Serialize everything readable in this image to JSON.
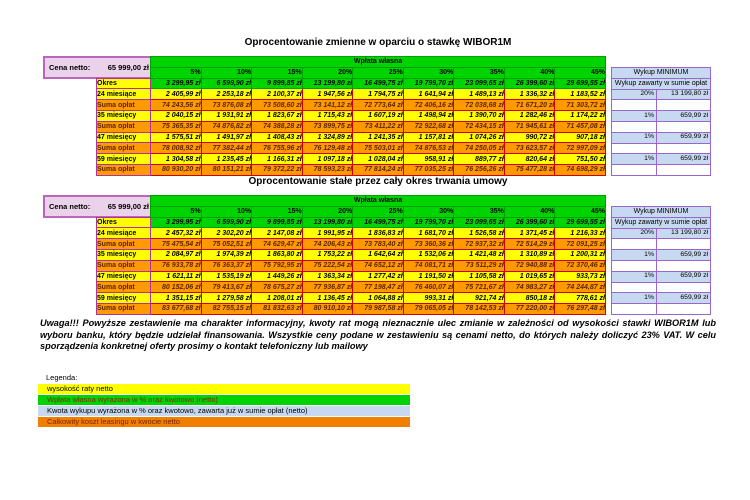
{
  "cena_netto": {
    "label": "Cena netto:",
    "value": "65 999,00 zł"
  },
  "wplata_header": "Wpłata własna",
  "percent_columns": [
    "5%",
    "10%",
    "15%",
    "20%",
    "25%",
    "30%",
    "35%",
    "40%",
    "45%"
  ],
  "wykup": {
    "title": "Wykup MINIMUM",
    "subtitle": "Wykup zawarty w sumie opłat",
    "rows": [
      [
        "20%",
        "13 199,80 zł"
      ],
      [
        "",
        ""
      ],
      [
        "1%",
        "659,99 zł"
      ],
      [
        "",
        ""
      ],
      [
        "1%",
        "659,99 zł"
      ],
      [
        "",
        ""
      ],
      [
        "1%",
        "659,99 zł"
      ],
      [
        "",
        ""
      ]
    ]
  },
  "tables": [
    {
      "title": "Oprocentowanie zmienne w oparciu o stawkę WIBOR1M",
      "rows": [
        {
          "label": "Okres",
          "type": "green",
          "values": [
            "3 299,95 zł",
            "6 599,90 zł",
            "9 899,85 zł",
            "13 199,80 zł",
            "16 499,75 zł",
            "19 799,70 zł",
            "23 099,65 zł",
            "26 399,60 zł",
            "29 699,55 zł"
          ]
        },
        {
          "label": "24 miesiące",
          "type": "rate",
          "values": [
            "2 405,99 zł",
            "2 253,18 zł",
            "2 100,37 zł",
            "1 947,56 zł",
            "1 794,75 zł",
            "1 641,94 zł",
            "1 489,13 zł",
            "1 336,32 zł",
            "1 183,52 zł"
          ]
        },
        {
          "label": "Suma opłat",
          "type": "sum",
          "values": [
            "74 243,56 zł",
            "73 876,08 zł",
            "73 508,60 zł",
            "73 141,12 zł",
            "72 773,64 zł",
            "72 406,16 zł",
            "72 038,68 zł",
            "71 671,20 zł",
            "71 303,72 zł"
          ]
        },
        {
          "label": "35 miesięcy",
          "type": "rate",
          "values": [
            "2 040,15 zł",
            "1 931,91 zł",
            "1 823,67 zł",
            "1 715,43 zł",
            "1 607,19 zł",
            "1 498,94 zł",
            "1 390,70 zł",
            "1 282,46 zł",
            "1 174,22 zł"
          ]
        },
        {
          "label": "Suma opłat",
          "type": "sum",
          "values": [
            "75 365,35 zł",
            "74 876,82 zł",
            "74 388,28 zł",
            "73 899,75 zł",
            "73 411,22 zł",
            "72 922,68 zł",
            "72 434,15 zł",
            "71 945,61 zł",
            "71 457,08 zł"
          ]
        },
        {
          "label": "47 miesięcy",
          "type": "rate",
          "values": [
            "1 575,51 zł",
            "1 491,97 zł",
            "1 408,43 zł",
            "1 324,89 zł",
            "1 241,35 zł",
            "1 157,81 zł",
            "1 074,26 zł",
            "990,72 zł",
            "907,18 zł"
          ]
        },
        {
          "label": "Suma opłat",
          "type": "sum",
          "values": [
            "78 008,92 zł",
            "77 382,44 zł",
            "76 755,96 zł",
            "76 129,48 zł",
            "75 503,01 zł",
            "74 876,53 zł",
            "74 250,05 zł",
            "73 623,57 zł",
            "72 997,09 zł"
          ]
        },
        {
          "label": "59 miesięcy",
          "type": "rate",
          "values": [
            "1 304,58 zł",
            "1 235,45 zł",
            "1 166,31 zł",
            "1 097,18 zł",
            "1 028,04 zł",
            "958,91 zł",
            "889,77 zł",
            "820,64 zł",
            "751,50 zł"
          ]
        },
        {
          "label": "Suma opłat",
          "type": "sum",
          "values": [
            "80 930,20 zł",
            "80 151,21 zł",
            "79 372,22 zł",
            "78 593,23 zł",
            "77 814,24 zł",
            "77 035,25 zł",
            "76 256,26 zł",
            "75 477,28 zł",
            "74 698,29 zł"
          ]
        }
      ]
    },
    {
      "title": "Oprocentowanie stałe przez cały okres trwania umowy",
      "rows": [
        {
          "label": "Okres",
          "type": "green",
          "values": [
            "3 299,95 zł",
            "6 599,90 zł",
            "9 899,85 zł",
            "13 199,80 zł",
            "16 499,75 zł",
            "19 799,70 zł",
            "23 099,65 zł",
            "26 399,60 zł",
            "29 699,55 zł"
          ]
        },
        {
          "label": "24 miesiące",
          "type": "rate",
          "values": [
            "2 457,32 zł",
            "2 302,20 zł",
            "2 147,08 zł",
            "1 991,95 zł",
            "1 836,83 zł",
            "1 681,70 zł",
            "1 526,58 zł",
            "1 371,45 zł",
            "1 216,33 zł"
          ]
        },
        {
          "label": "Suma opłat",
          "type": "sum",
          "values": [
            "75 475,54 zł",
            "75 052,51 zł",
            "74 629,47 zł",
            "74 206,43 zł",
            "73 783,40 zł",
            "73 360,36 zł",
            "72 937,32 zł",
            "72 514,29 zł",
            "72 091,25 zł"
          ]
        },
        {
          "label": "35 miesięcy",
          "type": "rate",
          "values": [
            "2 084,97 zł",
            "1 974,39 zł",
            "1 863,80 zł",
            "1 753,22 zł",
            "1 642,64 zł",
            "1 532,06 zł",
            "1 421,48 zł",
            "1 310,89 zł",
            "1 200,31 zł"
          ]
        },
        {
          "label": "Suma opłat",
          "type": "sum",
          "values": [
            "76 933,78 zł",
            "76 363,37 zł",
            "75 792,95 zł",
            "75 222,54 zł",
            "74 652,12 zł",
            "74 081,71 zł",
            "73 511,29 zł",
            "72 940,88 zł",
            "72 370,46 zł"
          ]
        },
        {
          "label": "47 miesięcy",
          "type": "rate",
          "values": [
            "1 621,11 zł",
            "1 535,19 zł",
            "1 449,26 zł",
            "1 363,34 zł",
            "1 277,42 zł",
            "1 191,50 zł",
            "1 105,58 zł",
            "1 019,65 zł",
            "933,73 zł"
          ]
        },
        {
          "label": "Suma opłat",
          "type": "sum",
          "values": [
            "80 152,06 zł",
            "79 413,67 zł",
            "78 675,27 zł",
            "77 936,87 zł",
            "77 198,47 zł",
            "76 460,07 zł",
            "75 721,67 zł",
            "74 983,27 zł",
            "74 244,87 zł"
          ]
        },
        {
          "label": "59 miesięcy",
          "type": "rate",
          "values": [
            "1 351,15 zł",
            "1 279,58 zł",
            "1 208,01 zł",
            "1 136,45 zł",
            "1 064,88 zł",
            "993,31 zł",
            "921,74 zł",
            "850,18 zł",
            "778,61 zł"
          ]
        },
        {
          "label": "Suma opłat",
          "type": "sum",
          "values": [
            "83 677,68 zł",
            "82 755,15 zł",
            "81 832,63 zł",
            "80 910,10 zł",
            "79 987,58 zł",
            "79 065,05 zł",
            "78 142,53 zł",
            "77 220,00 zł",
            "76 297,48 zł"
          ]
        }
      ]
    }
  ],
  "warning": "Uwaga!!! Powyższe zestawienie ma charakter informacyjny, kwoty rat mogą nieznacznie ulec zmianie w zależności od wysokości stawki WIBOR1M lub wyboru banku, który będzie udzielał finansowania. Wszystkie ceny podane w zestawieniu są cenami netto, do których należy doliczyć 23% VAT. W celu sporządzenia konkretnej oferty prosimy o kontakt telefoniczny lub mailowy",
  "legend": {
    "title": "Legenda:",
    "items": [
      {
        "label": "wysokość raty netto",
        "color": "#ffff00",
        "text_color": "#000000"
      },
      {
        "label": "Wpłata własna wyrażona w % oraz kwotowo (netto)",
        "color": "#00d400",
        "text_color": "#7f2a00"
      },
      {
        "label": "Kwota wykupu wyrażona w % oraz kwotowo, zawarta już w sumie opłat (netto)",
        "color": "#c6d9f0",
        "text_color": "#000000"
      },
      {
        "label": "Całkowity koszt leasingu w kwocie netto",
        "color": "#f07f00",
        "text_color": "#7f2000"
      }
    ]
  },
  "colors": {
    "green": "#00d400",
    "yellow": "#ffff00",
    "orange": "#ff9900",
    "blue": "#c6d9f0",
    "pink": "#ebd2eb",
    "grid_red": "#cc0000",
    "grid_green": "#00a000",
    "grid_purple": "#9966cc",
    "label_border": "#b03399",
    "sum_text": "#5b2500"
  }
}
